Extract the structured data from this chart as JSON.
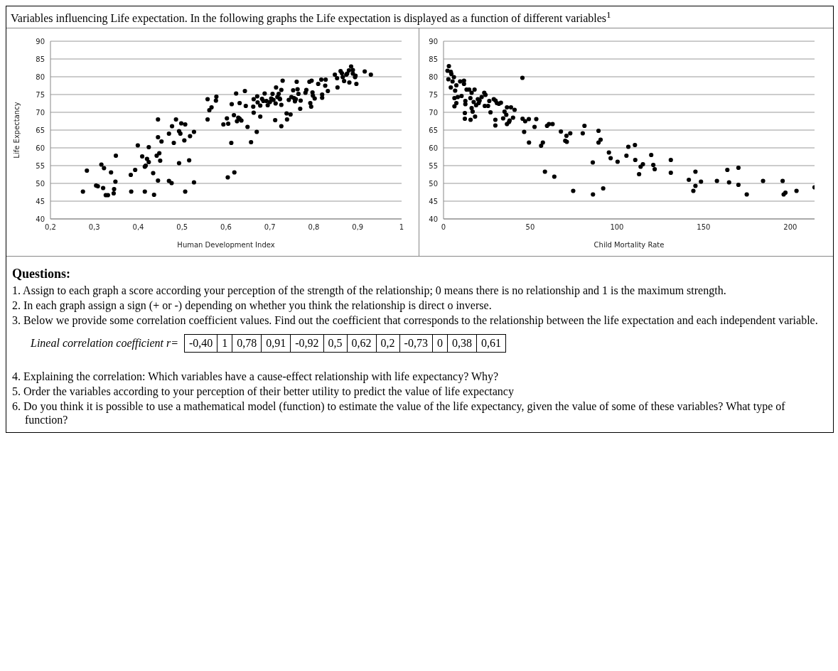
{
  "chart_data": [
    {
      "type": "scatter",
      "title": "Variables influencing Life expectation.  In the following graphs the Life expectation is displayed as a function of different variables$^{1}$",
      "xlabel": "Human Development Index",
      "ylabel": "Life Expectancy",
      "xlim": [
        0.2,
        1
      ],
      "xticks": [
        {
          "value": 0.2,
          "label": "0,2"
        },
        {
          "value": 0.3,
          "label": "0,3"
        },
        {
          "value": 0.4,
          "label": "0,4"
        },
        {
          "value": 0.5,
          "label": "0,5"
        },
        {
          "value": 0.6,
          "label": "0,6"
        },
        {
          "value": 0.7,
          "label": "0,7"
        },
        {
          "value": 0.8,
          "label": "0,8"
        },
        {
          "value": 0.9,
          "label": "0,9"
        },
        1
      ],
      "ylim": [
        40,
        90
      ],
      "yticks": [
        40,
        45,
        50,
        55,
        60,
        65,
        70,
        75,
        80,
        85,
        90
      ],
      "grid": "y",
      "marker": "circle",
      "legend": false,
      "series": [
        {
          "color": "#000000",
          "x": [
            0.274,
            0.283,
            0.316,
            0.322,
            0.304,
            0.308,
            0.32,
            0.326,
            0.331,
            0.338,
            0.344,
            0.345,
            0.348,
            0.349,
            0.383,
            0.393,
            0.384,
            0.399,
            0.409,
            0.415,
            0.417,
            0.42,
            0.424,
            0.424,
            0.415,
            0.434,
            0.436,
            0.442,
            0.448,
            0.445,
            0.445,
            0.445,
            0.453,
            0.45,
            0.47,
            0.47,
            0.476,
            0.477,
            0.481,
            0.486,
            0.493,
            0.496,
            0.498,
            0.507,
            0.505,
            0.493,
            0.507,
            0.516,
            0.518,
            0.527,
            0.527,
            0.558,
            0.558,
            0.562,
            0.567,
            0.577,
            0.578,
            0.594,
            0.605,
            0.602,
            0.613,
            0.612,
            0.604,
            0.619,
            0.618,
            0.623,
            0.625,
            0.628,
            0.631,
            0.635,
            0.631,
            0.643,
            0.645,
            0.649,
            0.657,
            0.662,
            0.663,
            0.663,
            0.67,
            0.671,
            0.678,
            0.672,
            0.678,
            0.682,
            0.685,
            0.688,
            0.692,
            0.695,
            0.7,
            0.703,
            0.706,
            0.708,
            0.713,
            0.714,
            0.717,
            0.72,
            0.722,
            0.723,
            0.726,
            0.726,
            0.729,
            0.712,
            0.726,
            0.738,
            0.739,
            0.743,
            0.747,
            0.749,
            0.753,
            0.755,
            0.757,
            0.759,
            0.761,
            0.763,
            0.765,
            0.769,
            0.77,
            0.781,
            0.783,
            0.79,
            0.792,
            0.794,
            0.795,
            0.797,
            0.798,
            0.802,
            0.81,
            0.819,
            0.819,
            0.826,
            0.817,
            0.827,
            0.832,
            0.848,
            0.853,
            0.854,
            0.861,
            0.864,
            0.869,
            0.866,
            0.874,
            0.876,
            0.88,
            0.881,
            0.885,
            0.889,
            0.889,
            0.894,
            0.897,
            0.895,
            0.916,
            0.93
          ],
          "values": [
            47.7,
            53.6,
            55.3,
            54.3,
            49.4,
            49.2,
            48.7,
            46.7,
            46.7,
            53.1,
            47.2,
            48.4,
            50.5,
            57.8,
            52.4,
            53.8,
            47.7,
            60.7,
            57.6,
            54.7,
            55,
            56.9,
            56,
            60.2,
            47.7,
            52.9,
            46.8,
            57.8,
            58.5,
            68,
            50.8,
            63,
            61.8,
            56.4,
            64,
            50.7,
            50.1,
            66.1,
            61.4,
            68,
            64.7,
            64,
            66.9,
            66.6,
            62.1,
            55.7,
            47.7,
            56.5,
            63.3,
            64.5,
            50.3,
            73.7,
            68,
            70.6,
            71.4,
            73.3,
            74.4,
            66.6,
            66.8,
            68.3,
            72.3,
            61.4,
            51.7,
            53.1,
            69.2,
            75.3,
            67.5,
            68.5,
            68.2,
            67.7,
            72.6,
            76,
            71.8,
            65.9,
            61.6,
            71.6,
            73.7,
            69.9,
            64.5,
            74.5,
            68.8,
            72.8,
            71.9,
            73.8,
            73.2,
            75.3,
            73.2,
            72,
            72.9,
            73.9,
            75.2,
            73.5,
            72.5,
            77,
            74.3,
            75.2,
            73.9,
            73.7,
            76.3,
            72.1,
            78.9,
            67.8,
            66.1,
            69.7,
            68,
            73.5,
            69.4,
            74.3,
            76.2,
            74,
            73.1,
            73.7,
            78.6,
            76.5,
            75.2,
            71,
            73.3,
            75.5,
            76.3,
            78.6,
            72.6,
            71.6,
            78.9,
            75.6,
            74.7,
            73.9,
            78,
            74.1,
            75,
            77.5,
            79.2,
            79.2,
            76,
            80.6,
            79.6,
            77,
            81.6,
            81,
            78.8,
            79.9,
            80.6,
            80.9,
            81.8,
            78.4,
            82.9,
            81.9,
            80.9,
            79.9,
            78,
            80.3,
            81.5,
            80.6
          ]
        }
      ]
    },
    {
      "type": "scatter",
      "xlabel": "Child Mortality Rate",
      "xlim": [
        0,
        214
      ],
      "xticks": [
        0,
        50,
        100,
        150,
        200
      ],
      "ylim": [
        40,
        90
      ],
      "yticks": [
        40,
        45,
        50,
        55,
        60,
        65,
        70,
        75,
        80,
        85,
        90
      ],
      "grid": "y",
      "marker": "circle",
      "legend": false,
      "series": [
        {
          "color": "#000000",
          "x": [
            3.1,
            2.3,
            4.2,
            4.5,
            2.8,
            5.2,
            6.0,
            4.2,
            7.4,
            6.7,
            9.6,
            11.8,
            11.8,
            13.3,
            6.3,
            8.2,
            10.4,
            7.4,
            6.3,
            12.6,
            12.6,
            12.3,
            12.3,
            14.8,
            16.2,
            15.5,
            15.6,
            16.8,
            18.2,
            16.2,
            17.4,
            18.8,
            17.9,
            19.8,
            20.8,
            22.0,
            20.3,
            23.5,
            24.2,
            23.8,
            25.7,
            27.1,
            26.4,
            29.0,
            30.0,
            30.8,
            31.9,
            33.1,
            29.9,
            29.9,
            35.2,
            36.2,
            36.6,
            34.4,
            36.6,
            37.8,
            38.9,
            40.1,
            41.0,
            38.1,
            45.5,
            45.6,
            47.1,
            46.5,
            49.2,
            49.3,
            52.5,
            53.5,
            56.3,
            57.3,
            58.5,
            59.7,
            60.8,
            62.9,
            63.9,
            67.7,
            70.2,
            70.9,
            71.1,
            73.1,
            74.8,
            80.3,
            81.3,
            86.1,
            86.2,
            89.4,
            89.4,
            90.6,
            92.1,
            95.4,
            96.4,
            100.4,
            105.5,
            106.6,
            110.4,
            110.6,
            112.8,
            113.7,
            115.0,
            119.8,
            121.0,
            121.8,
            131.1,
            131.1,
            141.5,
            144.1,
            145.3,
            145.3,
            148.5,
            157.7,
            163.7,
            164.7,
            170.1,
            170.1,
            174.9,
            184.3,
            195.6,
            196.2,
            197.2,
            203.6,
            214
          ],
          "values": [
            83,
            81.7,
            81.4,
            80.8,
            79.3,
            78.7,
            79.9,
            77,
            77.6,
            76.1,
            78.7,
            78.9,
            78,
            76.4,
            74,
            74.3,
            74.6,
            72.6,
            71.7,
            73.2,
            72.3,
            69.8,
            68.2,
            76.4,
            75.5,
            74,
            67.9,
            70.2,
            68.8,
            71.2,
            72.9,
            72,
            76.4,
            73.7,
            73.3,
            74.3,
            72.6,
            75.5,
            74.9,
            71.8,
            71.8,
            70,
            73.2,
            73.7,
            73.3,
            72.6,
            72.4,
            72.7,
            67.9,
            66.3,
            70.2,
            69.3,
            71.4,
            68.3,
            66.7,
            67.3,
            71.4,
            68.5,
            70.7,
            67.7,
            79.7,
            68.2,
            67.5,
            64.5,
            68.1,
            61.5,
            65.9,
            68.1,
            60.6,
            61.5,
            53.3,
            66.2,
            66.7,
            66.7,
            51.9,
            64.6,
            62,
            63.4,
            61.7,
            64.1,
            47.9,
            64.1,
            66.2,
            55.9,
            46.9,
            64.8,
            61.5,
            62.3,
            48.6,
            58.7,
            57.1,
            56.1,
            57.8,
            60.3,
            60.8,
            56.6,
            52.6,
            54.7,
            55.4,
            58,
            55.2,
            54,
            56.6,
            53,
            51,
            47.9,
            53.3,
            49.3,
            50.5,
            50.7,
            53.8,
            50.3,
            54.4,
            49.6,
            46.9,
            50.7,
            50.7,
            46.9,
            47.4,
            47.9,
            48.9
          ]
        }
      ],
      "annotations": [
        "Questions:",
        "1. Assign to each graph a score according your perception of the strength of the relationship; 0 means there is no relationship and 1 is the maximum strength.",
        "2. In each graph assign a sign (+ or -) depending on whether you think the relationship is direct o inverse.",
        "3. Below we provide some correlation coefficient values. Find out the coefficient that corresponds to the relationship between the life expectation and each independent variable.",
        "Lineal correlation coefficient  r=",
        "-0,40",
        "1",
        "0,78",
        "0,91",
        "-0,92",
        "0,5",
        "0,62",
        "0,2",
        "-0,73",
        "0",
        "0,38",
        "0,61",
        "4. Explaining the correlation: Which variables have a cause-effect relationship with life expectancy? Why?",
        "5. Order the variables according to your perception of their better utility to predict the value of life expectancy",
        "6. Do you think it is possible to use a mathematical model (function) to estimate the value of the life expectancy, given the value of some of these variables? What type of function?"
      ]
    }
  ]
}
